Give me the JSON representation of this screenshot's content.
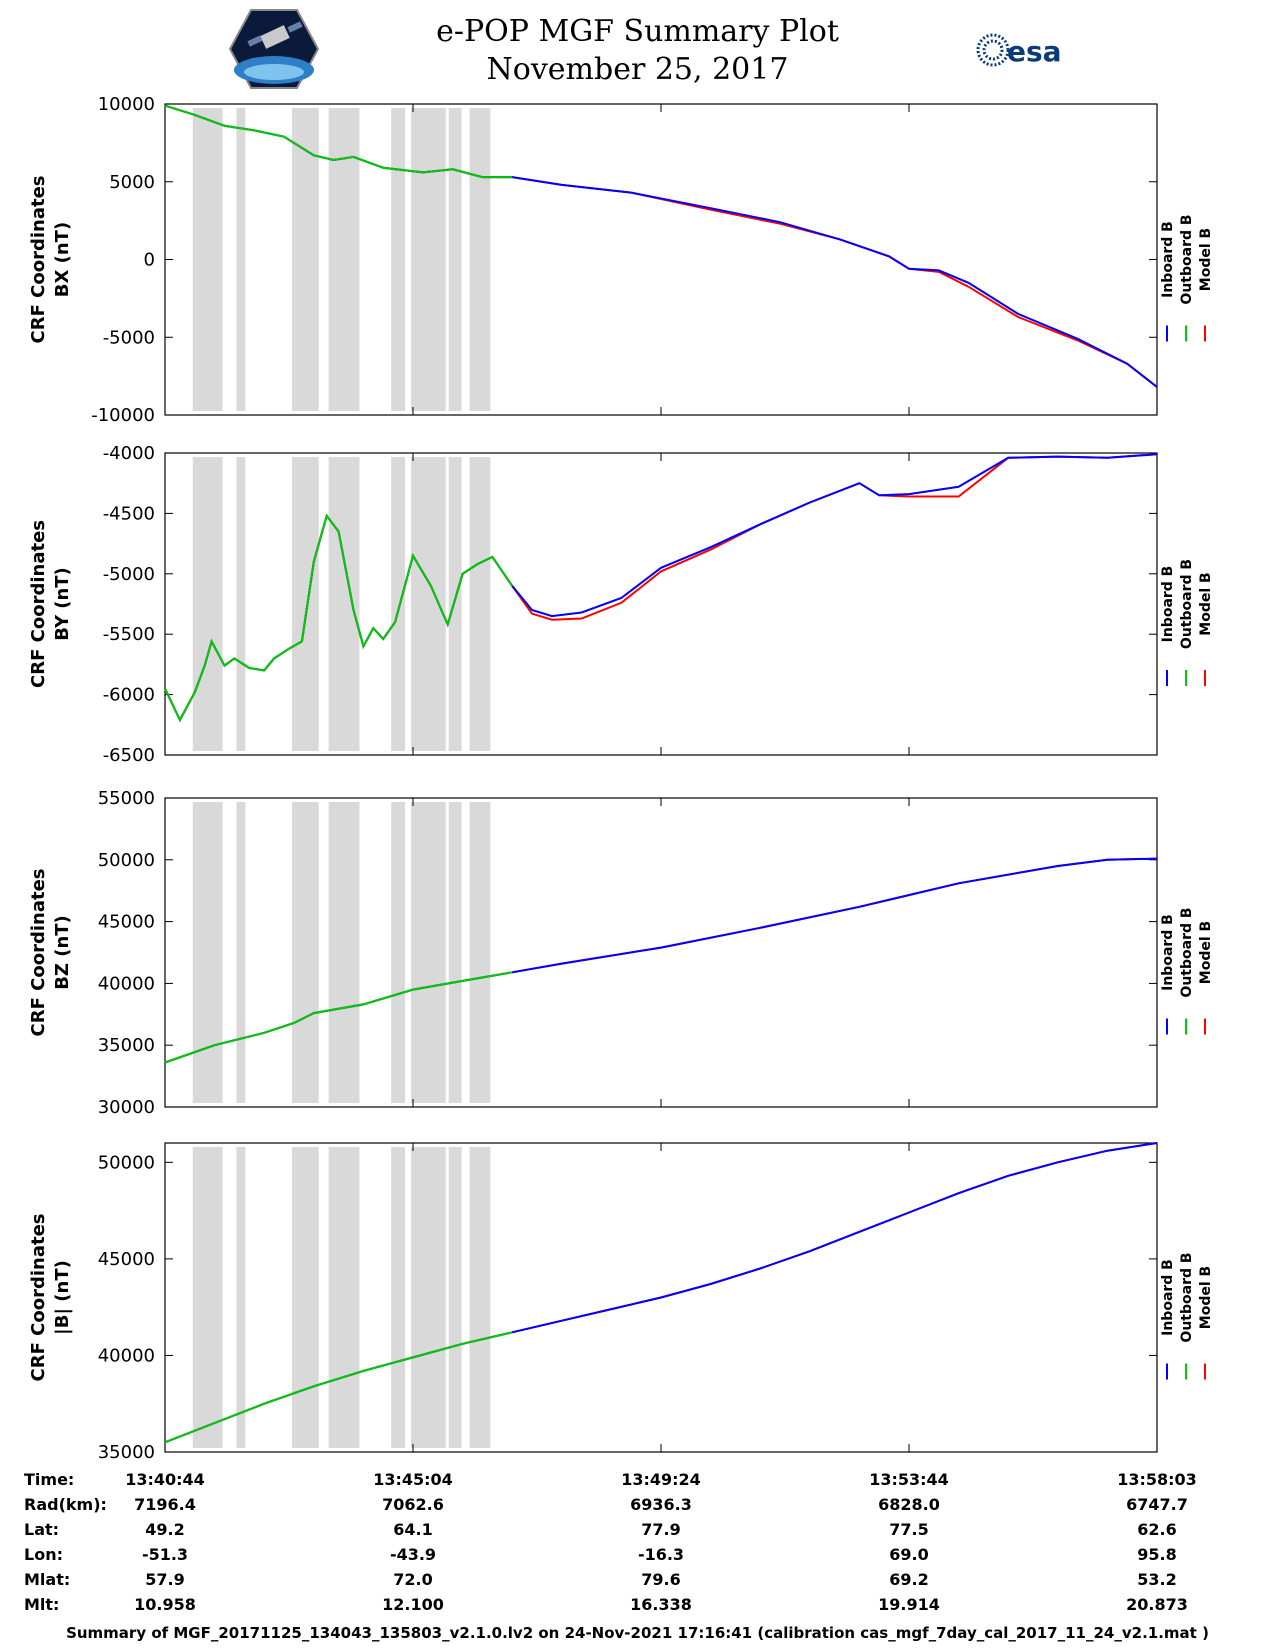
{
  "title_line1": "e-POP MGF Summary Plot",
  "title_line2": "November 25, 2017",
  "esa_logo_text": "esa",
  "footer": "Summary of MGF_20171125_134043_135803_v2.1.0.lv2 on 24-Nov-2021 17:16:41 (calibration cas_mgf_7day_cal_2017_11_24_v2.1.mat )",
  "colors": {
    "inboard": "#0000ff",
    "outboard": "#00cc00",
    "model": "#ff0000",
    "gap": "#d9d9d9"
  },
  "chart_data": {
    "type": "line",
    "x_range_frac": [
      0,
      1
    ],
    "x_tick_frac": [
      0.0,
      0.25,
      0.5,
      0.75,
      1.0
    ],
    "outboard_end_frac": 0.35,
    "gap_intervals_frac": [
      [
        0.028,
        0.058
      ],
      [
        0.072,
        0.081
      ],
      [
        0.128,
        0.155
      ],
      [
        0.165,
        0.196
      ],
      [
        0.228,
        0.242
      ],
      [
        0.248,
        0.283
      ],
      [
        0.286,
        0.299
      ],
      [
        0.307,
        0.328
      ]
    ],
    "legend": [
      "Inboard B",
      "Outboard B",
      "Model B"
    ],
    "panels": [
      {
        "name": "bx",
        "ylabel_line1": "CRF Coordinates",
        "ylabel_line2": "BX (nT)",
        "ylim": [
          -10000,
          10000
        ],
        "yticks": [
          -10000,
          -5000,
          0,
          5000,
          10000
        ],
        "x": [
          0,
          0.03,
          0.06,
          0.09,
          0.12,
          0.15,
          0.17,
          0.19,
          0.22,
          0.26,
          0.29,
          0.32,
          0.35,
          0.4,
          0.47,
          0.55,
          0.62,
          0.68,
          0.73,
          0.75,
          0.78,
          0.81,
          0.86,
          0.92,
          0.97,
          1.0
        ],
        "values": [
          9900,
          9300,
          8600,
          8300,
          7900,
          6700,
          6400,
          6600,
          5900,
          5600,
          5800,
          5300,
          5300,
          4800,
          4300,
          3300,
          2400,
          1300,
          200,
          -600,
          -700,
          -1500,
          -3500,
          -5100,
          -6700,
          -8200
        ],
        "model_offset": [
          0,
          0,
          0,
          0,
          0,
          0,
          0,
          0,
          0,
          0,
          0,
          0,
          0,
          0,
          0,
          -100,
          -100,
          0,
          0,
          0,
          -100,
          -250,
          -200,
          -100,
          0,
          0
        ]
      },
      {
        "name": "by",
        "ylabel_line1": "CRF Coordinates",
        "ylabel_line2": "BY (nT)",
        "ylim": [
          -6500,
          -4000
        ],
        "yticks": [
          -6500,
          -6000,
          -5500,
          -5000,
          -4500,
          -4000
        ],
        "x": [
          0,
          0.015,
          0.03,
          0.04,
          0.047,
          0.06,
          0.07,
          0.085,
          0.1,
          0.11,
          0.125,
          0.138,
          0.15,
          0.163,
          0.175,
          0.19,
          0.2,
          0.21,
          0.22,
          0.232,
          0.25,
          0.268,
          0.285,
          0.3,
          0.315,
          0.33,
          0.35,
          0.37,
          0.39,
          0.42,
          0.46,
          0.5,
          0.55,
          0.6,
          0.65,
          0.7,
          0.72,
          0.75,
          0.8,
          0.85,
          0.9,
          0.95,
          1.0
        ],
        "values": [
          -5950,
          -6210,
          -5980,
          -5760,
          -5560,
          -5760,
          -5700,
          -5780,
          -5800,
          -5700,
          -5620,
          -5560,
          -4900,
          -4520,
          -4650,
          -5300,
          -5600,
          -5450,
          -5540,
          -5400,
          -4850,
          -5100,
          -5420,
          -5000,
          -4920,
          -4860,
          -5100,
          -5300,
          -5350,
          -5320,
          -5200,
          -4950,
          -4780,
          -4590,
          -4410,
          -4250,
          -4350,
          -4340,
          -4280,
          -4040,
          -4030,
          -4040,
          -4010
        ],
        "model_offset": [
          0,
          0,
          0,
          0,
          0,
          0,
          0,
          0,
          0,
          0,
          0,
          0,
          0,
          0,
          0,
          0,
          0,
          0,
          0,
          0,
          0,
          0,
          0,
          0,
          0,
          0,
          0,
          -30,
          -30,
          -50,
          -40,
          -30,
          -20,
          0,
          0,
          0,
          0,
          -20,
          -80,
          0,
          0,
          0,
          0
        ]
      },
      {
        "name": "bz",
        "ylabel_line1": "CRF Coordinates",
        "ylabel_line2": "BZ (nT)",
        "ylim": [
          30000,
          55000
        ],
        "yticks": [
          30000,
          35000,
          40000,
          45000,
          50000,
          55000
        ],
        "x": [
          0,
          0.05,
          0.1,
          0.13,
          0.15,
          0.2,
          0.25,
          0.3,
          0.35,
          0.4,
          0.5,
          0.6,
          0.7,
          0.8,
          0.9,
          0.95,
          1.0
        ],
        "values": [
          33600,
          35000,
          36000,
          36800,
          37600,
          38300,
          39500,
          40200,
          40900,
          41600,
          42900,
          44500,
          46200,
          48100,
          49500,
          50000,
          50100
        ],
        "model_offset": [
          0,
          0,
          0,
          0,
          0,
          0,
          0,
          0,
          0,
          0,
          0,
          0,
          0,
          0,
          0,
          0,
          0
        ]
      },
      {
        "name": "bmag",
        "ylabel_line1": "CRF Coordinates",
        "ylabel_line2": "|B| (nT)",
        "ylim": [
          35000,
          51000
        ],
        "yticks": [
          35000,
          40000,
          45000,
          50000
        ],
        "x": [
          0,
          0.05,
          0.1,
          0.15,
          0.2,
          0.25,
          0.3,
          0.35,
          0.4,
          0.45,
          0.5,
          0.55,
          0.6,
          0.65,
          0.7,
          0.75,
          0.8,
          0.85,
          0.9,
          0.95,
          1.0
        ],
        "values": [
          35500,
          36500,
          37500,
          38400,
          39200,
          39900,
          40600,
          41200,
          41800,
          42400,
          43000,
          43700,
          44500,
          45400,
          46400,
          47400,
          48400,
          49300,
          50000,
          50600,
          51000
        ],
        "model_offset": [
          0,
          0,
          0,
          0,
          0,
          0,
          0,
          0,
          0,
          0,
          0,
          0,
          0,
          0,
          0,
          0,
          0,
          0,
          0,
          0,
          0
        ]
      }
    ]
  },
  "table": {
    "row_labels": [
      "Time:",
      "Rad(km):",
      "Lat:",
      "Lon:",
      "Mlat:",
      "Mlt:"
    ],
    "columns": [
      [
        "13:40:44",
        "7196.4",
        "49.2",
        "-51.3",
        "57.9",
        "10.958"
      ],
      [
        "13:45:04",
        "7062.6",
        "64.1",
        "-43.9",
        "72.0",
        "12.100"
      ],
      [
        "13:49:24",
        "6936.3",
        "77.9",
        "-16.3",
        "79.6",
        "16.338"
      ],
      [
        "13:53:44",
        "6828.0",
        "77.5",
        "69.0",
        "69.2",
        "19.914"
      ],
      [
        "13:58:03",
        "6747.7",
        "62.6",
        "95.8",
        "53.2",
        "20.873"
      ]
    ]
  }
}
